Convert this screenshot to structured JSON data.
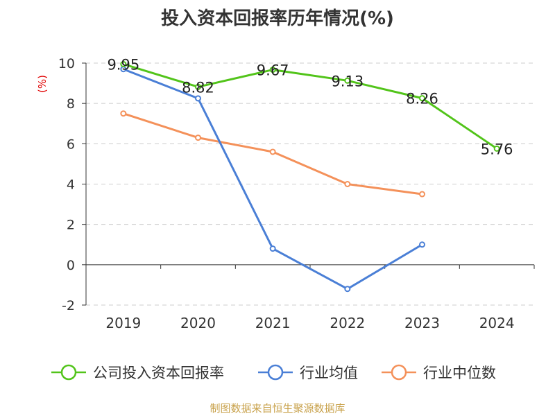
{
  "chart_data": {
    "type": "line",
    "title": "投入资本回报率历年情况(%)",
    "ylabel": "(%)",
    "xlabel": "",
    "categories": [
      "2019",
      "2020",
      "2021",
      "2022",
      "2023",
      "2024"
    ],
    "ylim": [
      -2,
      10
    ],
    "yticks": [
      -2,
      0,
      2,
      4,
      6,
      8,
      10
    ],
    "grid": true,
    "legend_position": "bottom",
    "series": [
      {
        "name": "公司投入资本回报率",
        "color": "#52c41a",
        "values": [
          9.95,
          8.82,
          9.67,
          9.13,
          8.26,
          5.76
        ],
        "labels": [
          "9.95",
          "8.82",
          "9.67",
          "9.13",
          "8.26",
          "5.76"
        ]
      },
      {
        "name": "行业均值",
        "color": "#4a7fd6",
        "values": [
          9.7,
          8.25,
          0.8,
          -1.2,
          1.0,
          null
        ]
      },
      {
        "name": "行业中位数",
        "color": "#f4915a",
        "values": [
          7.5,
          6.3,
          5.6,
          4.0,
          3.5,
          null
        ]
      }
    ]
  },
  "footer": {
    "source": "制图数据来自恒生聚源数据库"
  }
}
